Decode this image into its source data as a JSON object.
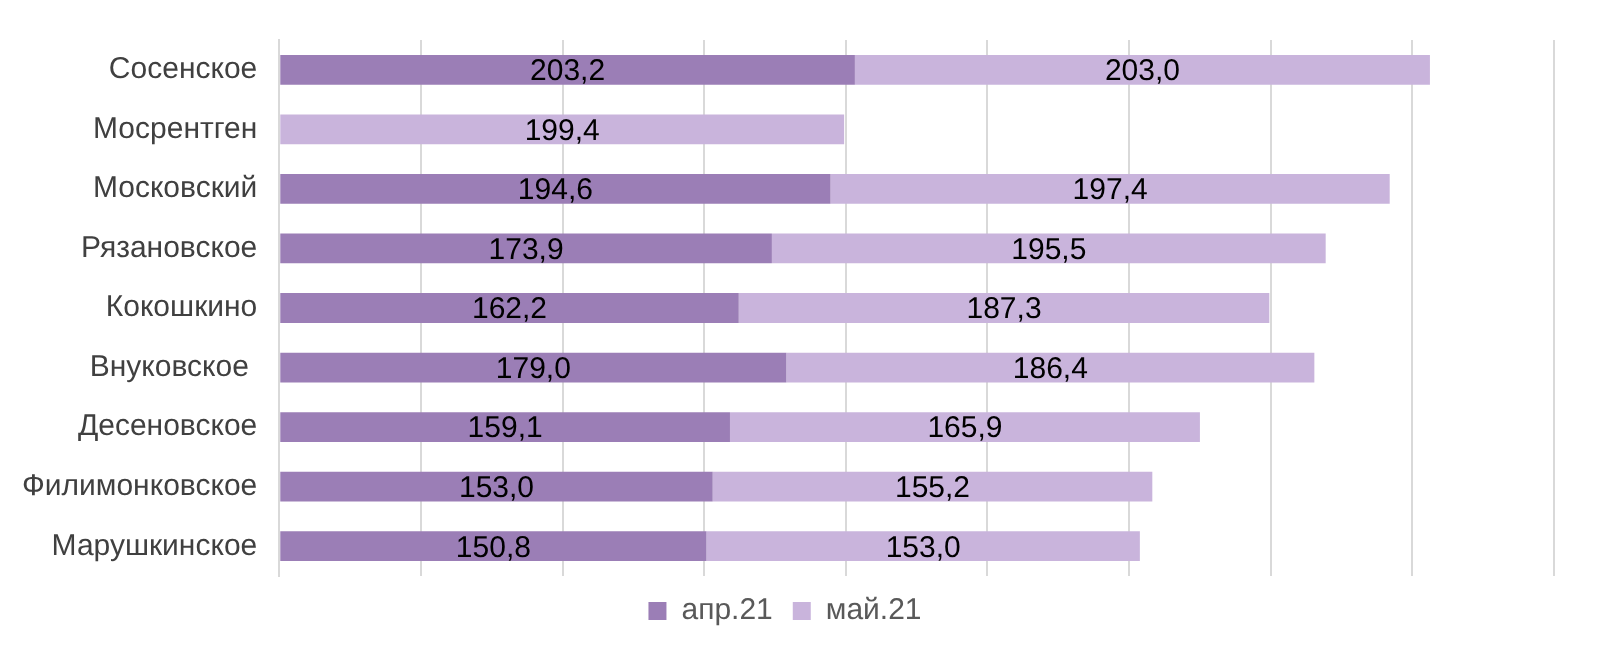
{
  "chart_data": {
    "type": "bar",
    "orientation": "horizontal",
    "stacked": true,
    "categories": [
      "Сосенское",
      "Мосрентген",
      "Московский",
      "Рязановское",
      "Кокошкино",
      "Внуковское ",
      "Десеновское",
      "Филимонковское",
      "Марушкинское"
    ],
    "series": [
      {
        "name": "апр.21",
        "color": "#9b7eb6",
        "values": [
          203.2,
          null,
          194.6,
          173.9,
          162.2,
          179.0,
          159.1,
          153.0,
          150.8
        ],
        "value_labels": [
          "203,2",
          null,
          "194,6",
          "173,9",
          "162,2",
          "179,0",
          "159,1",
          "153,0",
          "150,8"
        ]
      },
      {
        "name": "май.21",
        "color": "#c9b4dc",
        "values": [
          203.0,
          199.4,
          197.4,
          195.5,
          187.3,
          186.4,
          165.9,
          155.2,
          153.0
        ],
        "value_labels": [
          "203,0",
          "199,4",
          "197,4",
          "195,5",
          "187,3",
          "186,4",
          "165,9",
          "155,2",
          "153,0"
        ]
      }
    ],
    "tick_labels": "y",
    "grid": "x",
    "legend": "bottom"
  }
}
